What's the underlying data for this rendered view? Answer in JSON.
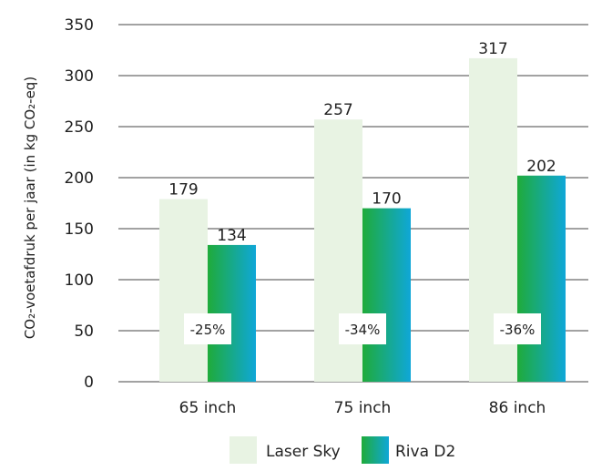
{
  "chart_data": {
    "type": "bar",
    "ylabel": "CO₂-voetafdruk per jaar (in kg CO₂-eq)",
    "categories": [
      "65 inch",
      "75 inch",
      "86 inch"
    ],
    "series": [
      {
        "name": "Laser Sky",
        "values": [
          179,
          257,
          317
        ],
        "color": "#e8f3e3"
      },
      {
        "name": "Riva D2",
        "values": [
          134,
          170,
          202
        ],
        "gradient": [
          "#1fab3a",
          "#0fa7d8"
        ]
      }
    ],
    "data_labels": [
      [
        "179",
        "257",
        "317"
      ],
      [
        "134",
        "170",
        "202"
      ]
    ],
    "reduction_labels": [
      "-25%",
      "-34%",
      "-36%"
    ],
    "yticks": [
      "0",
      "50",
      "100",
      "150",
      "200",
      "250",
      "300",
      "350"
    ],
    "ylim": [
      0,
      350
    ],
    "grid": true,
    "legend_position": "bottom-center"
  }
}
